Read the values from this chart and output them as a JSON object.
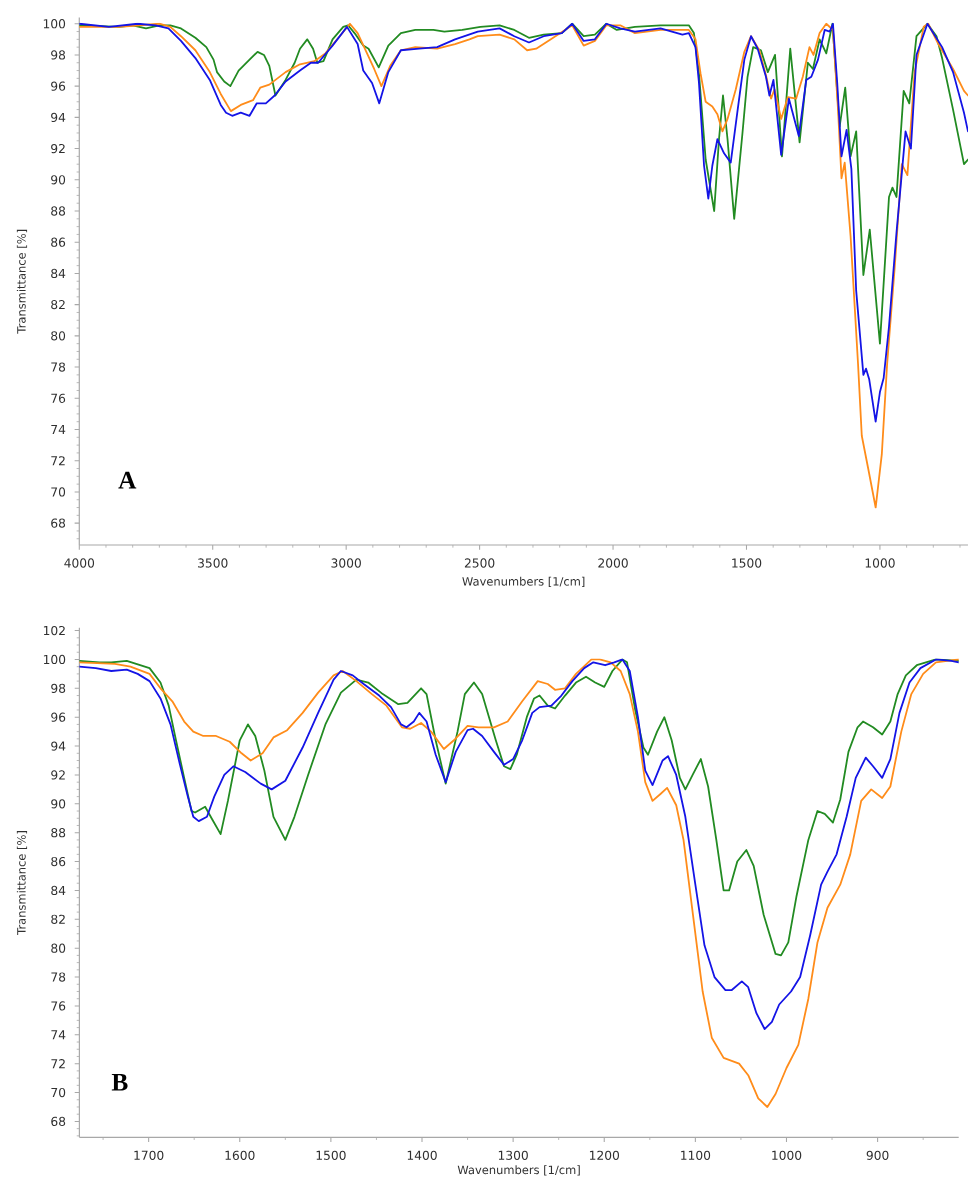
{
  "chart_data": [
    {
      "type": "line",
      "xlabel": "Wavenumbers [1/cm]",
      "ylabel": "Transmittance [%]",
      "annotations": [
        "A"
      ],
      "xlim": [
        4000,
        670
      ],
      "ylim": [
        66.6,
        100.4
      ],
      "xticks": [
        4000,
        {
          "value": 3900,
          "label": null
        },
        {
          "value": 3800,
          "label": null
        },
        {
          "value": 3700,
          "label": null
        },
        {
          "value": 3600,
          "label": null
        },
        3500,
        {
          "value": 3400,
          "label": null
        },
        {
          "value": 3300,
          "label": null
        },
        {
          "value": 3200,
          "label": null
        },
        {
          "value": 3100,
          "label": null
        },
        3000,
        {
          "value": 2900,
          "label": null
        },
        {
          "value": 2800,
          "label": null
        },
        {
          "value": 2700,
          "label": null
        },
        {
          "value": 2600,
          "label": null
        },
        2500,
        {
          "value": 2400,
          "label": null
        },
        {
          "value": 2300,
          "label": null
        },
        {
          "value": 2200,
          "label": null
        },
        {
          "value": 2100,
          "label": null
        },
        2000,
        {
          "value": 1900,
          "label": null
        },
        {
          "value": 1800,
          "label": null
        },
        {
          "value": 1700,
          "label": null
        },
        {
          "value": 1600,
          "label": null
        },
        1500,
        {
          "value": 1400,
          "label": null
        },
        {
          "value": 1300,
          "label": null
        },
        {
          "value": 1200,
          "label": null
        },
        {
          "value": 1100,
          "label": null
        },
        1000,
        {
          "value": 900,
          "label": null
        },
        {
          "value": 800,
          "label": null
        },
        {
          "value": 700,
          "label": null
        }
      ],
      "yticks": [
        {
          "value": 67,
          "label": null
        },
        {
          "value": 67.5,
          "label": null
        },
        68,
        {
          "value": 68.5,
          "label": null
        },
        {
          "value": 69,
          "label": null
        },
        {
          "value": 69.5,
          "label": null
        },
        70,
        {
          "value": 70.5,
          "label": null
        },
        {
          "value": 71,
          "label": null
        },
        {
          "value": 71.5,
          "label": null
        },
        72,
        {
          "value": 72.5,
          "label": null
        },
        {
          "value": 73,
          "label": null
        },
        {
          "value": 73.5,
          "label": null
        },
        74,
        {
          "value": 74.5,
          "label": null
        },
        {
          "value": 75,
          "label": null
        },
        {
          "value": 75.5,
          "label": null
        },
        76,
        {
          "value": 76.5,
          "label": null
        },
        {
          "value": 77,
          "label": null
        },
        {
          "value": 77.5,
          "label": null
        },
        78,
        {
          "value": 78.5,
          "label": null
        },
        {
          "value": 79,
          "label": null
        },
        {
          "value": 79.5,
          "label": null
        },
        80,
        {
          "value": 80.5,
          "label": null
        },
        {
          "value": 81,
          "label": null
        },
        {
          "value": 81.5,
          "label": null
        },
        82,
        {
          "value": 82.5,
          "label": null
        },
        {
          "value": 83,
          "label": null
        },
        {
          "value": 83.5,
          "label": null
        },
        84,
        {
          "value": 84.5,
          "label": null
        },
        {
          "value": 85,
          "label": null
        },
        {
          "value": 85.5,
          "label": null
        },
        86,
        {
          "value": 86.5,
          "label": null
        },
        {
          "value": 87,
          "label": null
        },
        {
          "value": 87.5,
          "label": null
        },
        88,
        {
          "value": 88.5,
          "label": null
        },
        {
          "value": 89,
          "label": null
        },
        {
          "value": 89.5,
          "label": null
        },
        90,
        {
          "value": 90.5,
          "label": null
        },
        {
          "value": 91,
          "label": null
        },
        {
          "value": 91.5,
          "label": null
        },
        92,
        {
          "value": 92.5,
          "label": null
        },
        {
          "value": 93,
          "label": null
        },
        {
          "value": 93.5,
          "label": null
        },
        94,
        {
          "value": 94.5,
          "label": null
        },
        {
          "value": 95,
          "label": null
        },
        {
          "value": 95.5,
          "label": null
        },
        96,
        {
          "value": 96.5,
          "label": null
        },
        {
          "value": 97,
          "label": null
        },
        {
          "value": 97.5,
          "label": null
        },
        98,
        {
          "value": 98.5,
          "label": null
        },
        {
          "value": 99,
          "label": null
        },
        {
          "value": 99.5,
          "label": null
        },
        100
      ],
      "series": [
        {
          "color": "#228b22",
          "x": [
            4000,
            3850,
            3800,
            3750,
            3700,
            3659,
            3619,
            3565,
            3524,
            3497,
            3484,
            3457,
            3434,
            3403,
            3362,
            3332,
            3308,
            3288,
            3265,
            3227,
            3193,
            3173,
            3146,
            3124,
            3108,
            3085,
            3051,
            3011,
            2993,
            2964,
            2936,
            2916,
            2878,
            2842,
            2795,
            2741,
            2673,
            2632,
            2565,
            2497,
            2425,
            2370,
            2315,
            2260,
            2192,
            2153,
            2110,
            2068,
            2025,
            1986,
            1918,
            1822,
            1726,
            1716,
            1697,
            1678,
            1653,
            1621,
            1603,
            1588,
            1571,
            1546,
            1515,
            1496,
            1475,
            1446,
            1420,
            1393,
            1367,
            1336,
            1301,
            1270,
            1251,
            1226,
            1201,
            1178,
            1151,
            1130,
            1110,
            1089,
            1062,
            1038,
            1000,
            966,
            953,
            938,
            911,
            890,
            863,
            822,
            788,
            767,
            726,
            685,
            670
          ],
          "values": [
            99.9,
            99.8,
            99.9,
            99.7,
            99.9,
            99.9,
            99.7,
            99.1,
            98.5,
            97.7,
            96.9,
            96.3,
            96.0,
            97.0,
            97.7,
            98.2,
            98.0,
            97.3,
            95.4,
            96.4,
            97.5,
            98.4,
            99.0,
            98.4,
            97.5,
            97.6,
            99.0,
            99.8,
            99.9,
            99.3,
            98.6,
            98.4,
            97.2,
            98.6,
            99.4,
            99.6,
            99.6,
            99.5,
            99.6,
            99.8,
            99.9,
            99.6,
            99.1,
            99.3,
            99.4,
            100.0,
            99.2,
            99.3,
            100.0,
            99.6,
            99.8,
            99.9,
            99.9,
            99.9,
            99.4,
            96.8,
            91.3,
            88.0,
            92.6,
            95.4,
            92.6,
            87.5,
            93.0,
            96.6,
            98.5,
            98.3,
            96.9,
            98.0,
            91.5,
            98.4,
            92.4,
            97.5,
            97.1,
            99.0,
            98.1,
            100.0,
            93.4,
            95.9,
            91.5,
            93.1,
            83.9,
            86.8,
            79.5,
            88.9,
            89.5,
            88.9,
            95.7,
            94.9,
            99.2,
            100.0,
            99.2,
            97.8,
            94.5,
            91.0,
            91.3
          ]
        },
        {
          "color": "#ff8c1a",
          "x": [
            4000,
            3850,
            3700,
            3659,
            3619,
            3565,
            3511,
            3470,
            3432,
            3395,
            3349,
            3322,
            3288,
            3227,
            3173,
            3119,
            3078,
            3024,
            2986,
            2957,
            2930,
            2895,
            2868,
            2835,
            2795,
            2741,
            2659,
            2592,
            2538,
            2507,
            2425,
            2370,
            2322,
            2288,
            2233,
            2153,
            2110,
            2068,
            2025,
            1973,
            1918,
            1822,
            1740,
            1716,
            1691,
            1672,
            1653,
            1628,
            1609,
            1590,
            1571,
            1540,
            1508,
            1483,
            1452,
            1427,
            1408,
            1395,
            1370,
            1345,
            1314,
            1289,
            1264,
            1249,
            1226,
            1201,
            1176,
            1157,
            1144,
            1132,
            1110,
            1082,
            1068,
            1044,
            1016,
            993,
            973,
            945,
            918,
            897,
            870,
            836,
            819,
            781,
            726,
            685,
            670
          ],
          "values": [
            99.8,
            99.8,
            100.0,
            99.8,
            99.2,
            98.3,
            96.9,
            95.5,
            94.4,
            94.8,
            95.1,
            95.9,
            96.1,
            96.9,
            97.4,
            97.6,
            98.1,
            99.2,
            100.0,
            99.4,
            98.4,
            97.1,
            96.0,
            97.3,
            98.3,
            98.5,
            98.4,
            98.7,
            99.0,
            99.2,
            99.3,
            99.0,
            98.3,
            98.4,
            99.0,
            99.9,
            98.6,
            98.9,
            99.9,
            99.9,
            99.4,
            99.6,
            99.6,
            99.6,
            99.0,
            96.8,
            95.0,
            94.7,
            94.2,
            93.1,
            93.9,
            95.8,
            98.2,
            99.2,
            98.3,
            96.7,
            95.2,
            95.8,
            93.9,
            95.3,
            95.2,
            96.6,
            98.5,
            98.0,
            99.4,
            100.0,
            99.6,
            94.5,
            90.1,
            91.1,
            86.4,
            78.2,
            73.6,
            71.5,
            69.0,
            72.4,
            78.2,
            84.3,
            91.0,
            90.3,
            96.9,
            99.8,
            100.0,
            98.7,
            97.1,
            95.7,
            95.4
          ]
        },
        {
          "color": "#1414e6",
          "x": [
            4000,
            3889,
            3781,
            3714,
            3666,
            3619,
            3565,
            3511,
            3470,
            3450,
            3427,
            3395,
            3362,
            3335,
            3301,
            3268,
            3227,
            3173,
            3132,
            3105,
            3051,
            2997,
            2957,
            2936,
            2903,
            2876,
            2842,
            2795,
            2727,
            2659,
            2592,
            2507,
            2425,
            2370,
            2315,
            2260,
            2192,
            2153,
            2110,
            2068,
            2025,
            1973,
            1918,
            1822,
            1740,
            1716,
            1691,
            1678,
            1659,
            1643,
            1628,
            1609,
            1584,
            1559,
            1533,
            1508,
            1483,
            1458,
            1427,
            1414,
            1399,
            1370,
            1341,
            1304,
            1276,
            1257,
            1232,
            1207,
            1188,
            1176,
            1160,
            1144,
            1125,
            1107,
            1089,
            1062,
            1052,
            1040,
            1016,
            1000,
            986,
            966,
            938,
            904,
            884,
            863,
            822,
            767,
            726,
            685,
            670
          ],
          "values": [
            100.0,
            99.8,
            100.0,
            99.9,
            99.7,
            98.9,
            97.8,
            96.4,
            94.8,
            94.3,
            94.1,
            94.3,
            94.1,
            94.9,
            94.9,
            95.4,
            96.3,
            97.0,
            97.5,
            97.5,
            98.6,
            99.8,
            98.7,
            97.0,
            96.2,
            94.9,
            96.9,
            98.3,
            98.4,
            98.5,
            99.0,
            99.5,
            99.7,
            99.2,
            98.8,
            99.2,
            99.4,
            100.0,
            98.9,
            99.0,
            100.0,
            99.7,
            99.5,
            99.7,
            99.3,
            99.4,
            98.5,
            96.2,
            90.9,
            88.8,
            90.9,
            92.6,
            91.7,
            91.1,
            94.5,
            97.7,
            99.2,
            98.4,
            96.6,
            95.4,
            96.4,
            91.6,
            95.2,
            92.8,
            96.4,
            96.6,
            97.7,
            99.6,
            99.5,
            100.0,
            96.2,
            91.5,
            93.2,
            90.7,
            82.9,
            77.5,
            77.9,
            77.2,
            74.5,
            76.4,
            77.3,
            80.6,
            86.6,
            93.1,
            92.0,
            98.0,
            100.0,
            98.5,
            96.9,
            94.3,
            93.1
          ]
        }
      ]
    },
    {
      "type": "line",
      "xlabel": "Wavenumbers [1/cm]",
      "ylabel": "Transmittance [%]",
      "annotations": [
        "B"
      ],
      "xlim": [
        1776,
        811
      ],
      "ylim": [
        66.9,
        102.2
      ],
      "xticks": [
        {
          "value": 1750,
          "label": null
        },
        1700,
        {
          "value": 1650,
          "label": null
        },
        1600,
        {
          "value": 1550,
          "label": null
        },
        1500,
        {
          "value": 1450,
          "label": null
        },
        1400,
        {
          "value": 1350,
          "label": null
        },
        1300,
        {
          "value": 1250,
          "label": null
        },
        1200,
        {
          "value": 1150,
          "label": null
        },
        1100,
        {
          "value": 1050,
          "label": null
        },
        1000,
        {
          "value": 950,
          "label": null
        },
        900,
        {
          "value": 850,
          "label": null
        }
      ],
      "yticks": [
        {
          "value": 67,
          "label": null
        },
        {
          "value": 67.5,
          "label": null
        },
        68,
        {
          "value": 68.5,
          "label": null
        },
        {
          "value": 69,
          "label": null
        },
        {
          "value": 69.5,
          "label": null
        },
        70,
        {
          "value": 70.5,
          "label": null
        },
        {
          "value": 71,
          "label": null
        },
        {
          "value": 71.5,
          "label": null
        },
        72,
        {
          "value": 72.5,
          "label": null
        },
        {
          "value": 73,
          "label": null
        },
        {
          "value": 73.5,
          "label": null
        },
        74,
        {
          "value": 74.5,
          "label": null
        },
        {
          "value": 75,
          "label": null
        },
        {
          "value": 75.5,
          "label": null
        },
        76,
        {
          "value": 76.5,
          "label": null
        },
        {
          "value": 77,
          "label": null
        },
        {
          "value": 77.5,
          "label": null
        },
        78,
        {
          "value": 78.5,
          "label": null
        },
        {
          "value": 79,
          "label": null
        },
        {
          "value": 79.5,
          "label": null
        },
        80,
        {
          "value": 80.5,
          "label": null
        },
        {
          "value": 81,
          "label": null
        },
        {
          "value": 81.5,
          "label": null
        },
        82,
        {
          "value": 82.5,
          "label": null
        },
        {
          "value": 83,
          "label": null
        },
        {
          "value": 83.5,
          "label": null
        },
        84,
        {
          "value": 84.5,
          "label": null
        },
        {
          "value": 85,
          "label": null
        },
        {
          "value": 85.5,
          "label": null
        },
        86,
        {
          "value": 86.5,
          "label": null
        },
        {
          "value": 87,
          "label": null
        },
        {
          "value": 87.5,
          "label": null
        },
        88,
        {
          "value": 88.5,
          "label": null
        },
        {
          "value": 89,
          "label": null
        },
        {
          "value": 89.5,
          "label": null
        },
        90,
        {
          "value": 90.5,
          "label": null
        },
        {
          "value": 91,
          "label": null
        },
        {
          "value": 91.5,
          "label": null
        },
        92,
        {
          "value": 92.5,
          "label": null
        },
        {
          "value": 93,
          "label": null
        },
        {
          "value": 93.5,
          "label": null
        },
        94,
        {
          "value": 94.5,
          "label": null
        },
        {
          "value": 95,
          "label": null
        },
        {
          "value": 95.5,
          "label": null
        },
        96,
        {
          "value": 96.5,
          "label": null
        },
        {
          "value": 97,
          "label": null
        },
        {
          "value": 97.5,
          "label": null
        },
        98,
        {
          "value": 98.5,
          "label": null
        },
        {
          "value": 99,
          "label": null
        },
        {
          "value": 99.5,
          "label": null
        },
        100,
        {
          "value": 100.5,
          "label": null
        },
        {
          "value": 101,
          "label": null
        },
        {
          "value": 101.5,
          "label": null
        },
        102
      ],
      "series": [
        {
          "color": "#228b22",
          "x": [
            1776,
            1754,
            1741,
            1724,
            1699,
            1687,
            1678,
            1670,
            1661,
            1653,
            1649,
            1638,
            1630,
            1621,
            1613,
            1600,
            1591,
            1583,
            1573,
            1563,
            1550,
            1540,
            1525,
            1506,
            1489,
            1472,
            1459,
            1443,
            1426,
            1416,
            1401,
            1395,
            1385,
            1374,
            1361,
            1353,
            1343,
            1334,
            1319,
            1310,
            1303,
            1296,
            1285,
            1277,
            1271,
            1262,
            1254,
            1243,
            1231,
            1220,
            1210,
            1200,
            1191,
            1180,
            1175,
            1166,
            1157,
            1152,
            1142,
            1134,
            1126,
            1117,
            1111,
            1103,
            1094,
            1086,
            1077,
            1069,
            1063,
            1054,
            1044,
            1036,
            1025,
            1012,
            1006,
            998,
            989,
            976,
            966,
            958,
            949,
            941,
            932,
            922,
            916,
            905,
            895,
            886,
            878,
            869,
            857,
            836,
            811
          ],
          "values": [
            99.9,
            99.8,
            99.8,
            99.9,
            99.4,
            98.4,
            96.8,
            94.4,
            91.8,
            89.5,
            89.4,
            89.8,
            88.9,
            87.9,
            90.2,
            94.4,
            95.5,
            94.7,
            92.3,
            89.1,
            87.5,
            89.1,
            92.0,
            95.5,
            97.7,
            98.6,
            98.4,
            97.6,
            96.9,
            97.0,
            98.0,
            97.6,
            94.4,
            91.4,
            95.0,
            97.6,
            98.4,
            97.6,
            94.4,
            92.6,
            92.4,
            93.4,
            96.0,
            97.3,
            97.5,
            96.8,
            96.6,
            97.5,
            98.4,
            98.8,
            98.4,
            98.1,
            99.2,
            100.0,
            99.8,
            96.5,
            93.9,
            93.4,
            95.0,
            96.0,
            94.4,
            91.8,
            91.0,
            92.0,
            93.1,
            91.2,
            87.5,
            84.0,
            84.0,
            86.0,
            86.8,
            85.7,
            82.3,
            79.6,
            79.5,
            80.4,
            83.6,
            87.5,
            89.5,
            89.3,
            88.7,
            90.3,
            93.6,
            95.3,
            95.7,
            95.3,
            94.8,
            95.7,
            97.6,
            98.9,
            99.6,
            100.0,
            99.9
          ]
        },
        {
          "color": "#ff8c1a",
          "x": [
            1776,
            1737,
            1720,
            1699,
            1687,
            1674,
            1661,
            1651,
            1640,
            1626,
            1611,
            1598,
            1588,
            1575,
            1563,
            1548,
            1531,
            1514,
            1497,
            1487,
            1472,
            1455,
            1439,
            1422,
            1413,
            1401,
            1390,
            1376,
            1365,
            1350,
            1338,
            1321,
            1306,
            1290,
            1273,
            1262,
            1254,
            1243,
            1231,
            1214,
            1205,
            1193,
            1182,
            1172,
            1163,
            1155,
            1147,
            1138,
            1131,
            1121,
            1113,
            1103,
            1092,
            1082,
            1069,
            1052,
            1042,
            1031,
            1021,
            1012,
            1000,
            987,
            976,
            966,
            955,
            941,
            930,
            918,
            907,
            895,
            886,
            874,
            863,
            850,
            836,
            811
          ],
          "values": [
            99.8,
            99.7,
            99.5,
            99.0,
            98.0,
            97.1,
            95.7,
            95.0,
            94.7,
            94.7,
            94.3,
            93.5,
            93.0,
            93.5,
            94.6,
            95.1,
            96.3,
            97.7,
            98.9,
            99.2,
            98.5,
            97.6,
            96.8,
            95.3,
            95.2,
            95.6,
            95.0,
            93.8,
            94.4,
            95.4,
            95.3,
            95.3,
            95.7,
            97.1,
            98.5,
            98.3,
            97.9,
            98.0,
            99.0,
            100.0,
            100.0,
            99.8,
            99.2,
            97.6,
            95.0,
            91.5,
            90.2,
            90.7,
            91.1,
            89.9,
            87.5,
            82.5,
            77.0,
            73.8,
            72.4,
            72.0,
            71.2,
            69.6,
            69.0,
            69.9,
            71.7,
            73.3,
            76.5,
            80.4,
            82.8,
            84.4,
            86.5,
            90.2,
            91.0,
            90.4,
            91.2,
            95.0,
            97.6,
            99.0,
            99.8,
            100.0
          ]
        },
        {
          "color": "#1414e6",
          "x": [
            1776,
            1758,
            1741,
            1724,
            1712,
            1699,
            1687,
            1676,
            1666,
            1657,
            1651,
            1645,
            1636,
            1628,
            1617,
            1607,
            1594,
            1577,
            1565,
            1550,
            1531,
            1514,
            1497,
            1489,
            1476,
            1464,
            1447,
            1434,
            1423,
            1417,
            1409,
            1403,
            1395,
            1385,
            1374,
            1363,
            1350,
            1344,
            1334,
            1321,
            1310,
            1300,
            1290,
            1279,
            1271,
            1258,
            1247,
            1235,
            1222,
            1212,
            1199,
            1189,
            1180,
            1172,
            1163,
            1155,
            1147,
            1136,
            1130,
            1121,
            1111,
            1100,
            1090,
            1079,
            1067,
            1060,
            1049,
            1042,
            1033,
            1024,
            1016,
            1008,
            995,
            985,
            974,
            962,
            955,
            945,
            934,
            924,
            913,
            905,
            895,
            886,
            876,
            865,
            853,
            836,
            819,
            811
          ],
          "values": [
            99.5,
            99.4,
            99.2,
            99.3,
            99.0,
            98.5,
            97.3,
            95.5,
            92.8,
            90.5,
            89.1,
            88.8,
            89.1,
            90.5,
            92.0,
            92.6,
            92.2,
            91.4,
            91.0,
            91.6,
            93.9,
            96.3,
            98.6,
            99.2,
            98.9,
            98.3,
            97.5,
            96.7,
            95.5,
            95.3,
            95.7,
            96.3,
            95.7,
            93.4,
            91.5,
            93.6,
            95.1,
            95.2,
            94.7,
            93.6,
            92.7,
            93.1,
            94.4,
            96.3,
            96.7,
            96.8,
            97.5,
            98.5,
            99.4,
            99.8,
            99.6,
            99.8,
            100.0,
            99.2,
            96.0,
            92.3,
            91.3,
            93.0,
            93.3,
            92.0,
            89.1,
            84.4,
            80.2,
            78.0,
            77.1,
            77.1,
            77.7,
            77.3,
            75.5,
            74.4,
            74.9,
            76.1,
            77.0,
            78.0,
            80.9,
            84.4,
            85.3,
            86.5,
            89.1,
            91.8,
            93.2,
            92.6,
            91.8,
            93.1,
            96.3,
            98.4,
            99.4,
            100.0,
            99.9,
            99.8
          ]
        }
      ]
    }
  ]
}
